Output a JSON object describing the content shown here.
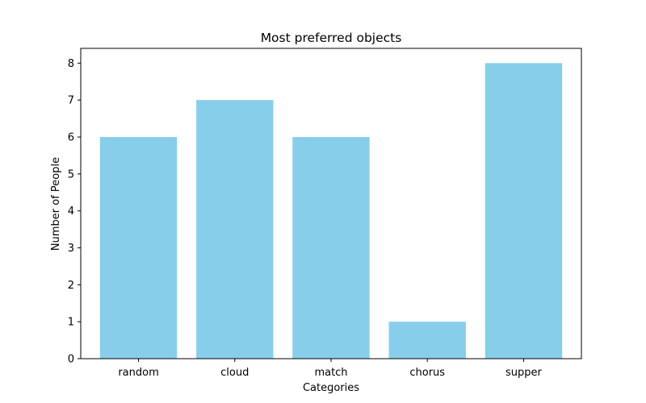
{
  "chart_data": {
    "type": "bar",
    "title": "Most preferred objects",
    "xlabel": "Categories",
    "ylabel": "Number of People",
    "categories": [
      "random",
      "cloud",
      "match",
      "chorus",
      "supper"
    ],
    "values": [
      6,
      7,
      6,
      1,
      8
    ],
    "ylim": [
      0,
      8.4
    ],
    "yticks": [
      0,
      1,
      2,
      3,
      4,
      5,
      6,
      7,
      8
    ],
    "grid": false,
    "bar_color": "#87ceeb"
  }
}
